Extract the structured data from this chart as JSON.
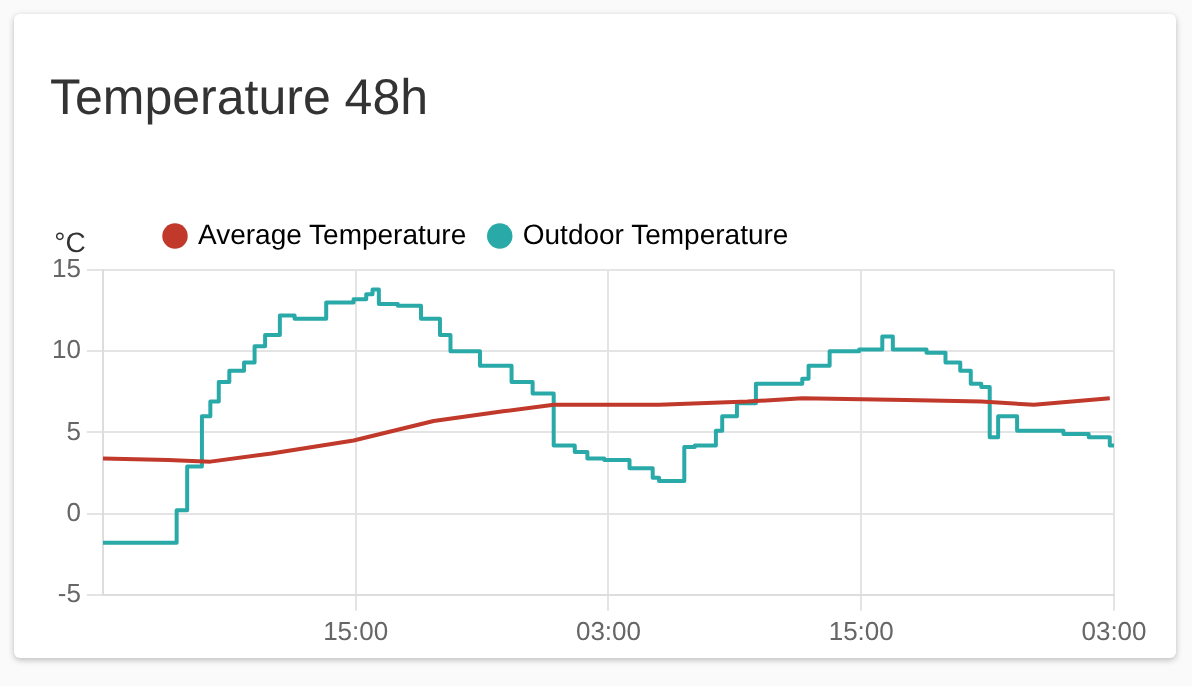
{
  "chart_data": {
    "type": "line",
    "title": "Temperature 48h",
    "ylabel": "°C",
    "xlim": [
      "--01-01T03:00",
      "--01-03T03:00"
    ],
    "xticks": [
      {
        "value": "--01-01T15:00",
        "label": "15:00"
      },
      {
        "value": "--01-02T03:00",
        "label": "03:00"
      },
      {
        "value": "--01-02T15:00",
        "label": "15:00"
      },
      {
        "value": "--01-03T03:00",
        "label": "03:00"
      }
    ],
    "ylim": [
      -5,
      15
    ],
    "yticks": [
      -5,
      0,
      5,
      10,
      15
    ],
    "grid": true,
    "legend": "top left",
    "marker": "none",
    "series": [
      {
        "name": "Average Temperature",
        "color": "#c0392b",
        "x": [
          "--01-01T03:00",
          "--01-01T06:06",
          "--01-01T08:06",
          "--01-01T11:00",
          "--01-01T14:54",
          "--01-01T18:42",
          "--01-01T22:00",
          "--01-02T00:24",
          "--01-02T05:24",
          "--01-02T09:36",
          "--01-02T12:12",
          "--01-02T17:06",
          "--01-02T20:42",
          "--01-02T23:12",
          "--01-03T02:48"
        ],
        "values": [
          3.4,
          3.3,
          3.2,
          3.7,
          4.5,
          5.7,
          6.3,
          6.7,
          6.7,
          6.9,
          7.1,
          7.0,
          6.9,
          6.7,
          7.1
        ]
      },
      {
        "name": "Outdoor Temperature",
        "type": "step",
        "color": "#2aa9a9",
        "x": [
          "--01-01T03:00",
          "--01-01T06:30",
          "--01-01T07:00",
          "--01-01T07:42",
          "--01-01T08:06",
          "--01-01T08:30",
          "--01-01T09:00",
          "--01-01T09:42",
          "--01-01T10:12",
          "--01-01T10:42",
          "--01-01T11:24",
          "--01-01T12:06",
          "--01-01T13:36",
          "--01-01T14:54",
          "--01-01T15:30",
          "--01-01T15:48",
          "--01-01T16:06",
          "--01-01T17:00",
          "--01-01T18:06",
          "--01-01T19:00",
          "--01-01T19:30",
          "--01-01T20:54",
          "--01-01T22:24",
          "--01-01T23:24",
          "--01-02T00:24",
          "--01-02T01:24",
          "--01-02T02:00",
          "--01-02T02:48",
          "--01-02T04:00",
          "--01-02T05:06",
          "--01-02T05:24",
          "--01-02T06:36",
          "--01-02T07:06",
          "--01-02T08:06",
          "--01-02T08:24",
          "--01-02T09:06",
          "--01-02T10:00",
          "--01-02T12:12",
          "--01-02T12:30",
          "--01-02T13:30",
          "--01-02T14:54",
          "--01-02T16:00",
          "--01-02T16:30",
          "--01-02T17:06",
          "--01-02T18:06",
          "--01-02T19:00",
          "--01-02T19:42",
          "--01-02T20:12",
          "--01-02T20:42",
          "--01-02T21:06",
          "--01-02T21:30",
          "--01-02T22:24",
          "--01-03T00:36",
          "--01-03T01:48",
          "--01-03T02:48",
          "--01-03T03:00"
        ],
        "values": [
          -1.8,
          0.2,
          2.9,
          6.0,
          6.9,
          8.1,
          8.8,
          9.3,
          10.3,
          11.0,
          12.2,
          12.0,
          13.0,
          13.2,
          13.5,
          13.8,
          12.9,
          12.8,
          12.0,
          11.0,
          10.0,
          9.1,
          8.1,
          7.4,
          4.2,
          3.8,
          3.4,
          3.3,
          2.8,
          2.2,
          2.0,
          4.1,
          4.2,
          5.1,
          6.0,
          6.8,
          8.0,
          8.3,
          9.1,
          10.0,
          10.1,
          10.9,
          10.1,
          10.1,
          9.9,
          9.3,
          8.8,
          8.0,
          7.8,
          4.7,
          6.0,
          5.1,
          4.9,
          4.7,
          4.2,
          4.2
        ]
      }
    ]
  }
}
